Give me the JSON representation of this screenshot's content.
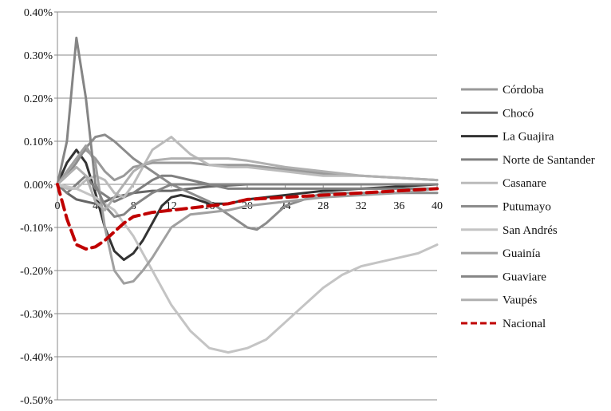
{
  "chart_data": {
    "type": "line",
    "title": "",
    "xlabel": "",
    "ylabel": "",
    "xlim": [
      0,
      40
    ],
    "ylim": [
      -0.5,
      0.4
    ],
    "y_unit": "%",
    "grid": "horizontal",
    "legend_position": "right",
    "x_ticks": [
      0,
      4,
      8,
      12,
      16,
      20,
      24,
      28,
      32,
      36,
      40
    ],
    "x_tick_labels": [
      "0",
      "4",
      "8",
      "12",
      "16",
      "20",
      "24",
      "28",
      "32",
      "36",
      "40"
    ],
    "y_ticks": [
      0.4,
      0.3,
      0.2,
      0.1,
      0.0,
      -0.1,
      -0.2,
      -0.3,
      -0.4,
      -0.5
    ],
    "y_tick_labels": [
      "0.40%",
      "0.30%",
      "0.20%",
      "0.10%",
      "0.00%",
      "-0.10%",
      "-0.20%",
      "-0.30%",
      "-0.40%",
      "-0.50%"
    ],
    "series": [
      {
        "name": "Córdoba",
        "color": "#999999",
        "dash": "solid",
        "x": [
          0,
          1,
          2,
          3,
          4,
          5,
          6,
          7,
          8,
          10,
          12,
          14,
          16,
          18,
          20,
          24,
          28,
          32,
          36,
          40
        ],
        "y": [
          0.0,
          0.03,
          0.06,
          0.08,
          0.06,
          0.03,
          0.01,
          0.02,
          0.04,
          0.05,
          0.05,
          0.05,
          0.045,
          0.045,
          0.045,
          0.035,
          0.025,
          0.02,
          0.015,
          0.01
        ]
      },
      {
        "name": "Chocó",
        "color": "#666666",
        "dash": "solid",
        "x": [
          0,
          1,
          2,
          3,
          4,
          5,
          6,
          8,
          10,
          12,
          14,
          16,
          20,
          24,
          28,
          32,
          36,
          40
        ],
        "y": [
          0.0,
          -0.02,
          -0.035,
          -0.04,
          -0.045,
          -0.04,
          -0.03,
          -0.02,
          -0.015,
          -0.015,
          -0.01,
          -0.005,
          0.0,
          0.0,
          0.0,
          0.0,
          0.0,
          0.0
        ]
      },
      {
        "name": "La Guajira",
        "color": "#333333",
        "dash": "solid",
        "x": [
          0,
          1,
          2,
          3,
          4,
          5,
          6,
          7,
          8,
          9,
          10,
          11,
          12,
          13,
          14,
          16,
          18,
          20,
          24,
          28,
          32,
          36,
          40
        ],
        "y": [
          0.0,
          0.05,
          0.08,
          0.05,
          -0.02,
          -0.1,
          -0.155,
          -0.175,
          -0.16,
          -0.13,
          -0.09,
          -0.05,
          -0.03,
          -0.025,
          -0.03,
          -0.045,
          -0.045,
          -0.035,
          -0.025,
          -0.015,
          -0.01,
          -0.005,
          0.0
        ]
      },
      {
        "name": "Norte de Santander",
        "color": "#7f7f7f",
        "dash": "solid",
        "x": [
          0,
          1,
          2,
          3,
          4,
          6,
          8,
          10,
          11,
          12,
          14,
          16,
          18,
          20,
          24,
          28,
          32,
          36,
          40
        ],
        "y": [
          0.0,
          -0.02,
          0.0,
          0.02,
          -0.01,
          -0.04,
          -0.02,
          0.01,
          0.02,
          0.02,
          0.01,
          0.0,
          -0.01,
          -0.01,
          -0.01,
          -0.01,
          -0.01,
          -0.01,
          -0.01
        ]
      },
      {
        "name": "Casanare",
        "color": "#bbbbbb",
        "dash": "solid",
        "x": [
          0,
          1,
          2,
          3,
          4,
          5,
          6,
          7,
          8,
          9,
          10,
          12,
          14,
          16,
          18,
          20,
          24,
          28,
          32,
          36,
          40
        ],
        "y": [
          0.0,
          -0.01,
          -0.01,
          0.01,
          0.02,
          0.01,
          -0.02,
          -0.03,
          0.0,
          0.04,
          0.08,
          0.11,
          0.07,
          0.045,
          0.04,
          0.04,
          0.03,
          0.02,
          0.02,
          0.015,
          0.01
        ]
      },
      {
        "name": "Putumayo",
        "color": "#8c8c8c",
        "dash": "solid",
        "x": [
          0,
          1,
          2,
          3,
          4,
          5,
          6,
          7,
          8,
          10,
          12,
          14,
          16,
          18,
          20,
          21,
          22,
          24,
          28,
          32,
          36,
          40
        ],
        "y": [
          0.0,
          0.02,
          0.05,
          0.085,
          0.11,
          0.115,
          0.1,
          0.08,
          0.06,
          0.03,
          0.0,
          -0.02,
          -0.04,
          -0.07,
          -0.1,
          -0.105,
          -0.09,
          -0.05,
          -0.02,
          -0.02,
          -0.02,
          -0.02
        ]
      },
      {
        "name": "San Andrés",
        "color": "#c4c4c4",
        "dash": "solid",
        "x": [
          0,
          2,
          4,
          6,
          8,
          10,
          12,
          14,
          16,
          18,
          20,
          22,
          24,
          26,
          28,
          30,
          32,
          34,
          36,
          38,
          40
        ],
        "y": [
          0.0,
          -0.01,
          -0.03,
          -0.06,
          -0.12,
          -0.2,
          -0.28,
          -0.34,
          -0.38,
          -0.39,
          -0.38,
          -0.36,
          -0.32,
          -0.28,
          -0.24,
          -0.21,
          -0.19,
          -0.18,
          -0.17,
          -0.16,
          -0.14
        ]
      },
      {
        "name": "Guainía",
        "color": "#a0a0a0",
        "dash": "solid",
        "x": [
          0,
          1,
          2,
          3,
          4,
          5,
          6,
          7,
          8,
          9,
          10,
          12,
          14,
          16,
          18,
          20,
          24,
          28,
          32,
          36,
          40
        ],
        "y": [
          0.0,
          0.03,
          0.06,
          0.09,
          0.05,
          -0.1,
          -0.2,
          -0.23,
          -0.225,
          -0.2,
          -0.17,
          -0.1,
          -0.07,
          -0.065,
          -0.06,
          -0.05,
          -0.04,
          -0.03,
          -0.025,
          -0.02,
          -0.01
        ]
      },
      {
        "name": "Guaviare",
        "color": "#858585",
        "dash": "solid",
        "x": [
          0,
          1,
          2,
          3,
          4,
          5,
          6,
          7,
          8,
          9,
          10,
          12,
          14,
          16,
          18,
          20,
          24,
          28,
          32,
          36,
          40
        ],
        "y": [
          0.0,
          0.1,
          0.34,
          0.2,
          0.0,
          -0.05,
          -0.075,
          -0.07,
          -0.05,
          -0.035,
          -0.02,
          0.0,
          0.0,
          0.0,
          0.0,
          0.0,
          0.0,
          0.0,
          0.0,
          0.0,
          0.0
        ]
      },
      {
        "name": "Vaupés",
        "color": "#b0b0b0",
        "dash": "solid",
        "x": [
          0,
          1,
          2,
          3,
          4,
          5,
          6,
          7,
          8,
          9,
          10,
          12,
          14,
          16,
          18,
          20,
          24,
          28,
          32,
          36,
          40
        ],
        "y": [
          0.0,
          0.02,
          0.04,
          0.02,
          -0.04,
          -0.06,
          -0.03,
          0.0,
          0.03,
          0.045,
          0.055,
          0.06,
          0.06,
          0.06,
          0.06,
          0.055,
          0.04,
          0.03,
          0.02,
          0.015,
          0.01
        ]
      },
      {
        "name": "Nacional",
        "color": "#c00000",
        "dash": "dashed",
        "x": [
          0,
          1,
          2,
          3,
          4,
          5,
          6,
          7,
          8,
          10,
          12,
          14,
          16,
          18,
          20,
          24,
          28,
          32,
          36,
          40
        ],
        "y": [
          0.0,
          -0.08,
          -0.14,
          -0.15,
          -0.145,
          -0.13,
          -0.11,
          -0.09,
          -0.075,
          -0.065,
          -0.06,
          -0.055,
          -0.05,
          -0.045,
          -0.035,
          -0.03,
          -0.025,
          -0.02,
          -0.015,
          -0.01
        ]
      }
    ]
  }
}
